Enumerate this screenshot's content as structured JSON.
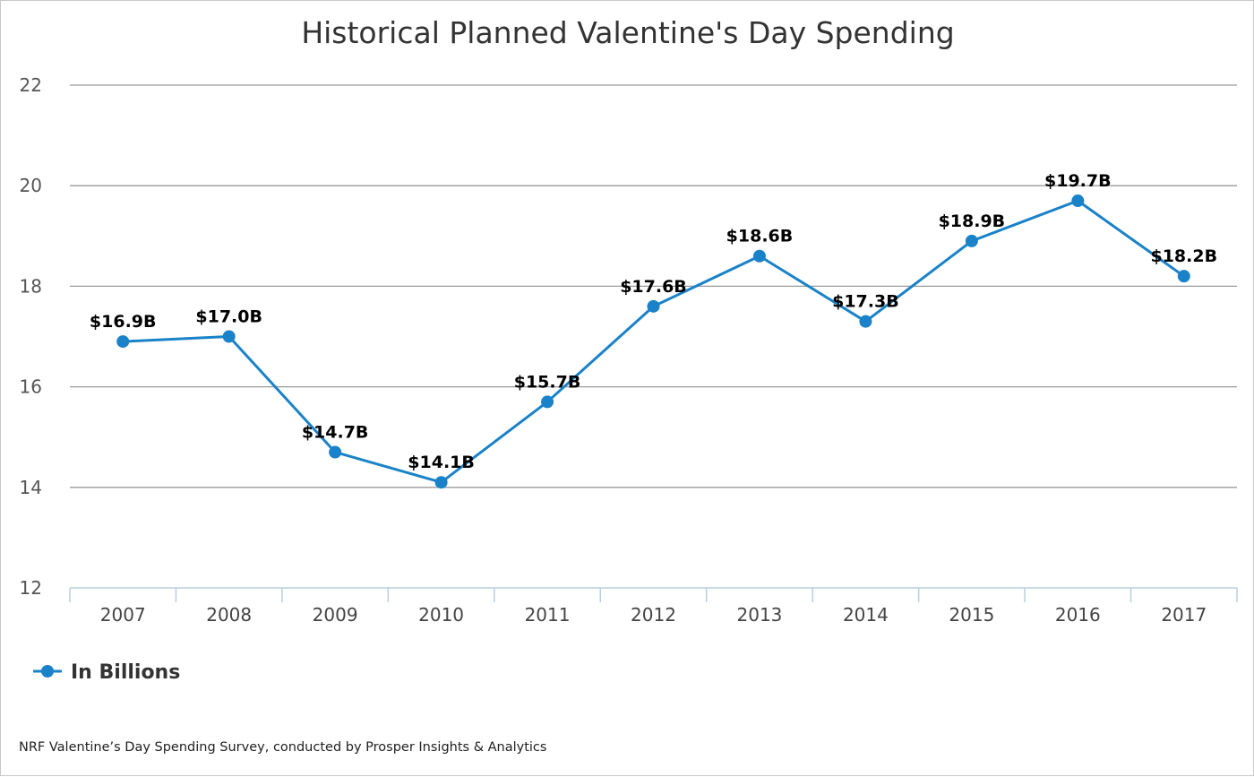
{
  "chart_data": {
    "type": "line",
    "title": "Historical Planned Valentine's Day Spending",
    "categories": [
      "2007",
      "2008",
      "2009",
      "2010",
      "2011",
      "2012",
      "2013",
      "2014",
      "2015",
      "2016",
      "2017"
    ],
    "series": [
      {
        "name": "In Billions",
        "color": "#1a82c8",
        "values": [
          16.9,
          17.0,
          14.7,
          14.1,
          15.7,
          17.6,
          18.6,
          17.3,
          18.9,
          19.7,
          18.2
        ],
        "labels": [
          "$16.9B",
          "$17.0B",
          "$14.7B",
          "$14.1B",
          "$15.7B",
          "$17.6B",
          "$18.6B",
          "$17.3B",
          "$18.9B",
          "$19.7B",
          "$18.2B"
        ]
      }
    ],
    "ylim": [
      12,
      22
    ],
    "yticks": [
      "12",
      "14",
      "16",
      "18",
      "20",
      "22"
    ],
    "grid": true,
    "legend_position": "bottom-left"
  },
  "source": "NRF Valentine’s Day Spending Survey, conducted by Prosper Insights & Analytics"
}
